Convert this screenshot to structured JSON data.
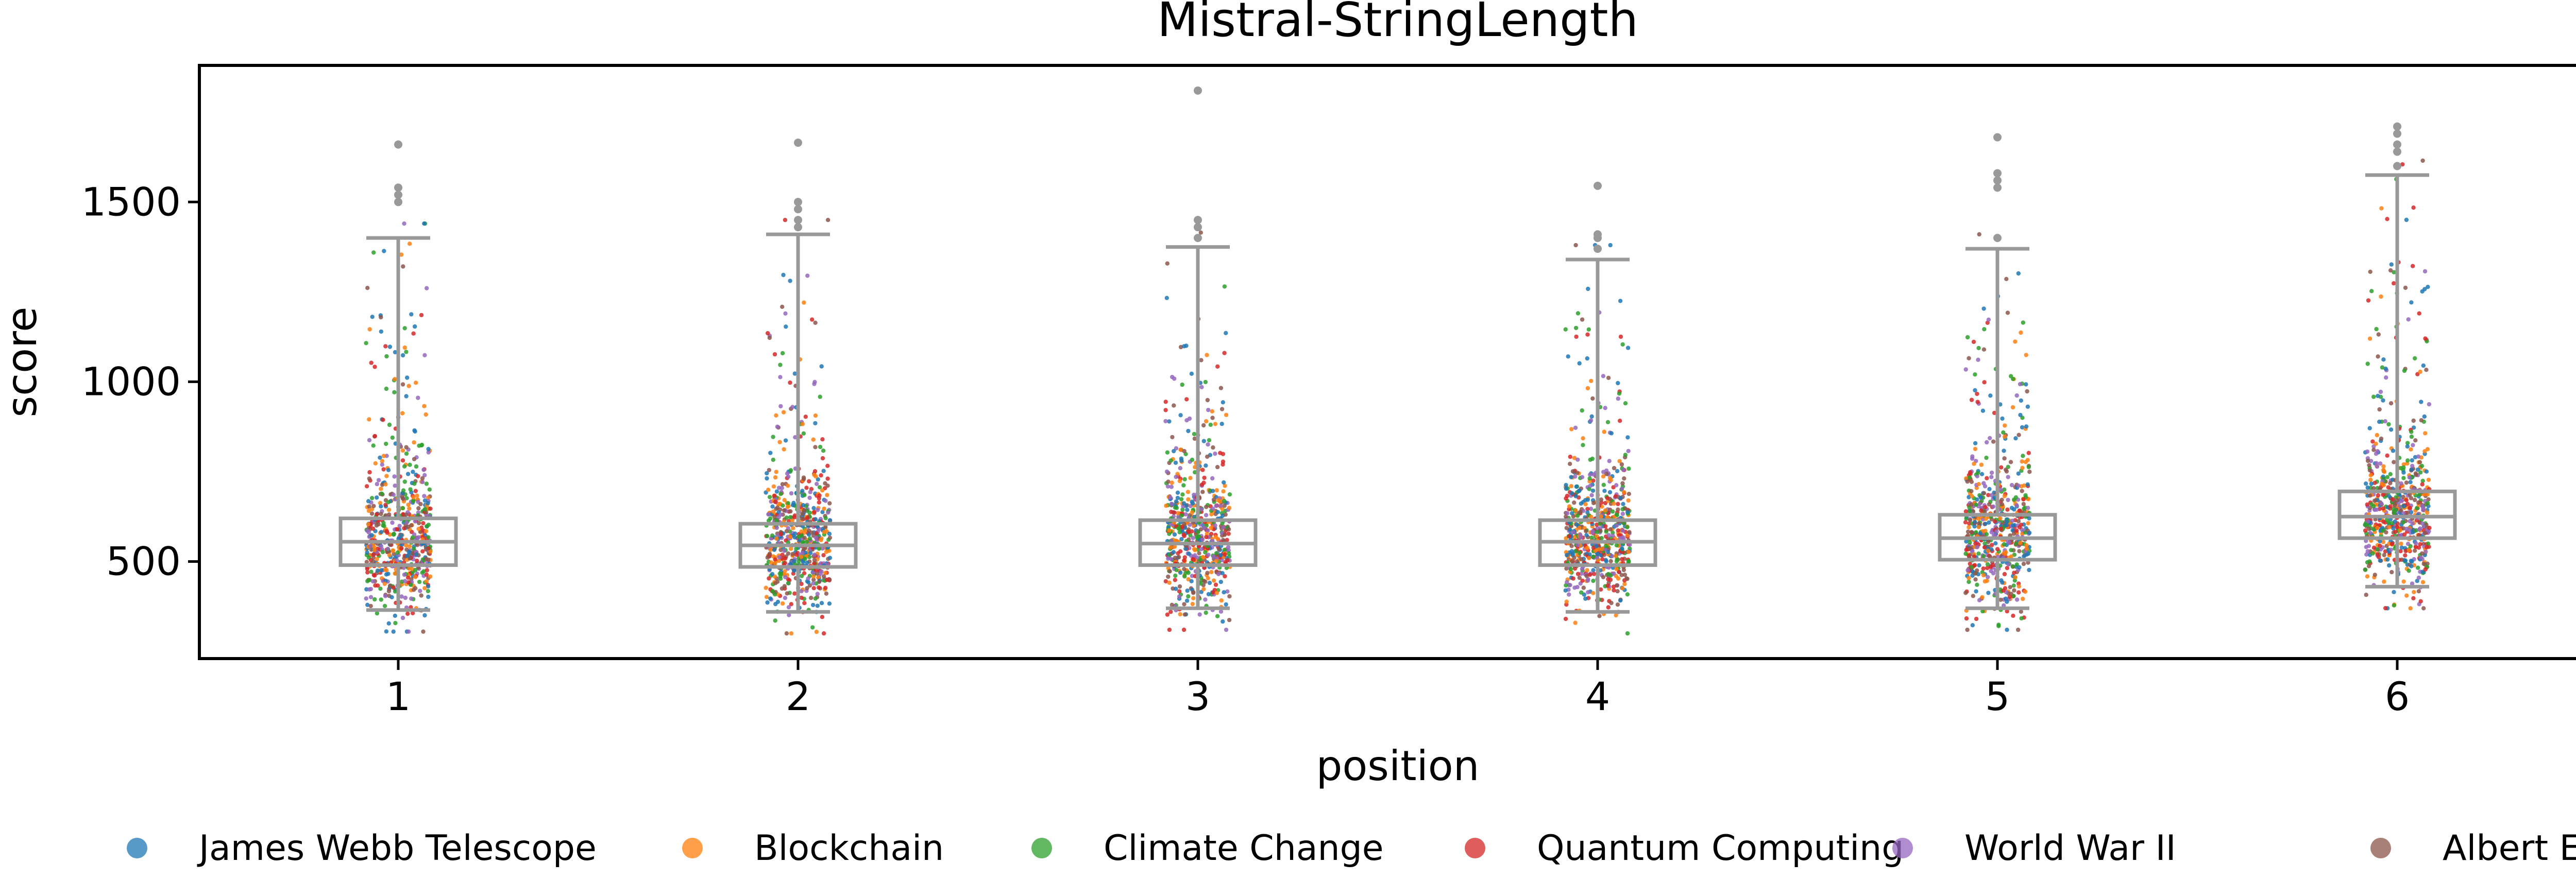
{
  "chart_data": {
    "type": "box",
    "title": "Mistral-StringLength",
    "xlabel": "position",
    "ylabel": "score",
    "ylim": [
      230,
      1880
    ],
    "yticks": [
      500,
      1000,
      1500
    ],
    "categories": [
      "1",
      "2",
      "3",
      "4",
      "5",
      "6"
    ],
    "box_stats": [
      {
        "category": "1",
        "whisker_low": 365,
        "q1": 490,
        "median": 555,
        "q3": 620,
        "whisker_high": 1400,
        "outliers": [
          1500,
          1520,
          1540,
          1660
        ]
      },
      {
        "category": "2",
        "whisker_low": 360,
        "q1": 485,
        "median": 545,
        "q3": 605,
        "whisker_high": 1410,
        "outliers": [
          1430,
          1450,
          1480,
          1500,
          1665
        ]
      },
      {
        "category": "3",
        "whisker_low": 370,
        "q1": 490,
        "median": 550,
        "q3": 615,
        "whisker_high": 1375,
        "outliers": [
          1400,
          1430,
          1450,
          1810
        ]
      },
      {
        "category": "4",
        "whisker_low": 360,
        "q1": 490,
        "median": 555,
        "q3": 615,
        "whisker_high": 1340,
        "outliers": [
          1370,
          1400,
          1410,
          1545
        ]
      },
      {
        "category": "5",
        "whisker_low": 370,
        "q1": 505,
        "median": 565,
        "q3": 630,
        "whisker_high": 1370,
        "outliers": [
          1400,
          1540,
          1560,
          1580,
          1680
        ]
      },
      {
        "category": "6",
        "whisker_low": 430,
        "q1": 565,
        "median": 625,
        "q3": 695,
        "whisker_high": 1575,
        "outliers": [
          1600,
          1640,
          1660,
          1690,
          1710
        ]
      }
    ],
    "series": [
      {
        "name": "James Webb Telescope",
        "color": "#1f77b4"
      },
      {
        "name": "Blockchain",
        "color": "#ff7f0e"
      },
      {
        "name": "Climate Change",
        "color": "#2ca02c"
      },
      {
        "name": "Quantum Computing",
        "color": "#d62728"
      },
      {
        "name": "World War II",
        "color": "#9467bd"
      },
      {
        "name": "Albert Einstein",
        "color": "#8c564b"
      }
    ],
    "box_color": "#999999",
    "grid": false,
    "legend_position": "bottom"
  }
}
